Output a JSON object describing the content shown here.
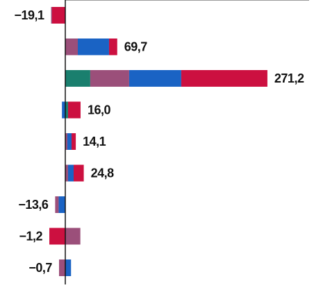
{
  "chart_data": {
    "type": "stacked-bar-horizontal",
    "categories": [
      null,
      null,
      null,
      null,
      null,
      null,
      null,
      null,
      null
    ],
    "series": [
      {
        "color": "#1a7f6e",
        "values": [
          null,
          null,
          33.5,
          3.7,
          null,
          null,
          null,
          null,
          null
        ]
      },
      {
        "color": "#9b4f7a",
        "values": [
          -1.4,
          16.8,
          52.2,
          null,
          2.8,
          3.7,
          -4.7,
          20.2,
          -8.4
        ]
      },
      {
        "color": "#1a63c4",
        "values": [
          null,
          41.9,
          69.9,
          -4.5,
          5.6,
          7.5,
          -8.9,
          null,
          7.7
        ]
      },
      {
        "color": "#cc1040",
        "values": [
          -17.7,
          11.0,
          115.6,
          16.8,
          5.7,
          13.6,
          null,
          -21.4,
          null
        ]
      }
    ],
    "totals": [
      -19.1,
      69.7,
      271.2,
      16.0,
      14.1,
      24.8,
      -13.6,
      -1.2,
      -0.7
    ],
    "total_labels": [
      "−19,1",
      "69,7",
      "271,2",
      "16,0",
      "14,1",
      "24,8",
      "−13,6",
      "−1,2",
      "−0,7"
    ],
    "xlim": [
      -87.6,
      330
    ]
  }
}
